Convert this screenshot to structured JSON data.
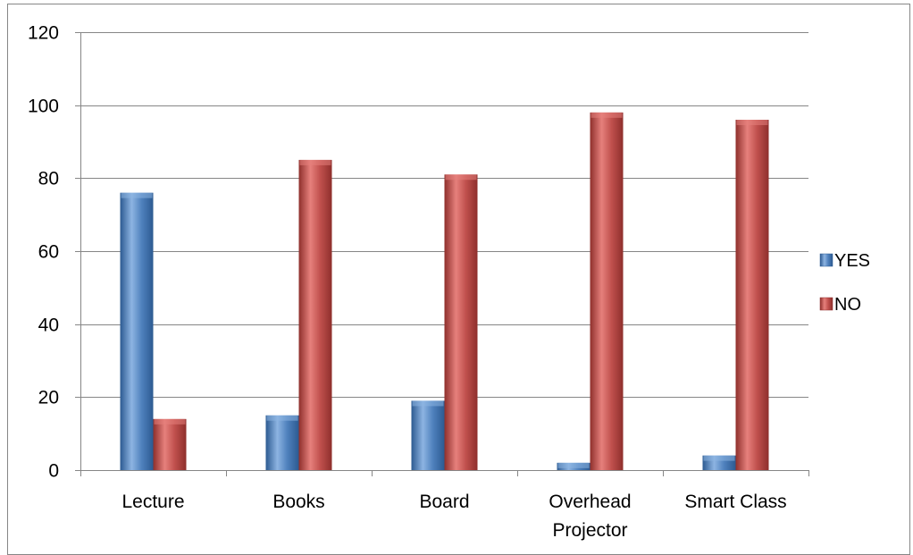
{
  "chart_data": {
    "type": "bar",
    "categories": [
      [
        "Lecture"
      ],
      [
        "Books"
      ],
      [
        "Board"
      ],
      [
        "Overhead",
        "Projector"
      ],
      [
        "Smart Class"
      ]
    ],
    "series": [
      {
        "name": "YES",
        "values": [
          76,
          15,
          19,
          2,
          4
        ]
      },
      {
        "name": "NO",
        "values": [
          14,
          85,
          81,
          98,
          96
        ]
      }
    ],
    "ylim": [
      0,
      120
    ],
    "yticks": [
      "0",
      "20",
      "40",
      "60",
      "80",
      "100",
      "120"
    ],
    "ytick_values": [
      0,
      20,
      40,
      60,
      80,
      100,
      120
    ],
    "grid": true,
    "legend_position": "right",
    "colors": {
      "YES": {
        "light": "#8db4e2",
        "base": "#4f81bd",
        "dark": "#2c5a91"
      },
      "NO": {
        "light": "#e6807c",
        "base": "#c0504d",
        "dark": "#8e2f2c"
      },
      "grid": "#868686",
      "frame": "#868686"
    }
  }
}
